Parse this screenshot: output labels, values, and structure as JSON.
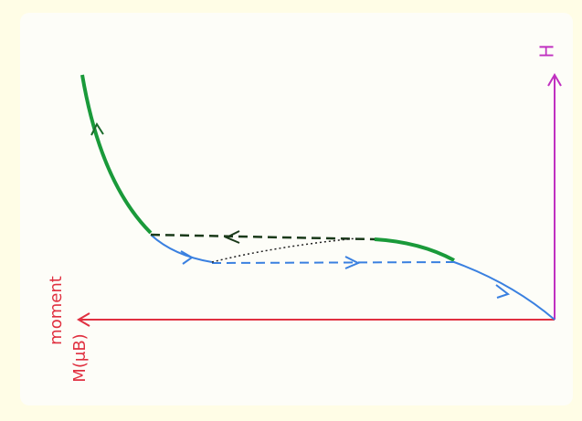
{
  "axis_labels": {
    "field": "H",
    "moment": "moment",
    "magnetization": "M(μB)"
  }
}
